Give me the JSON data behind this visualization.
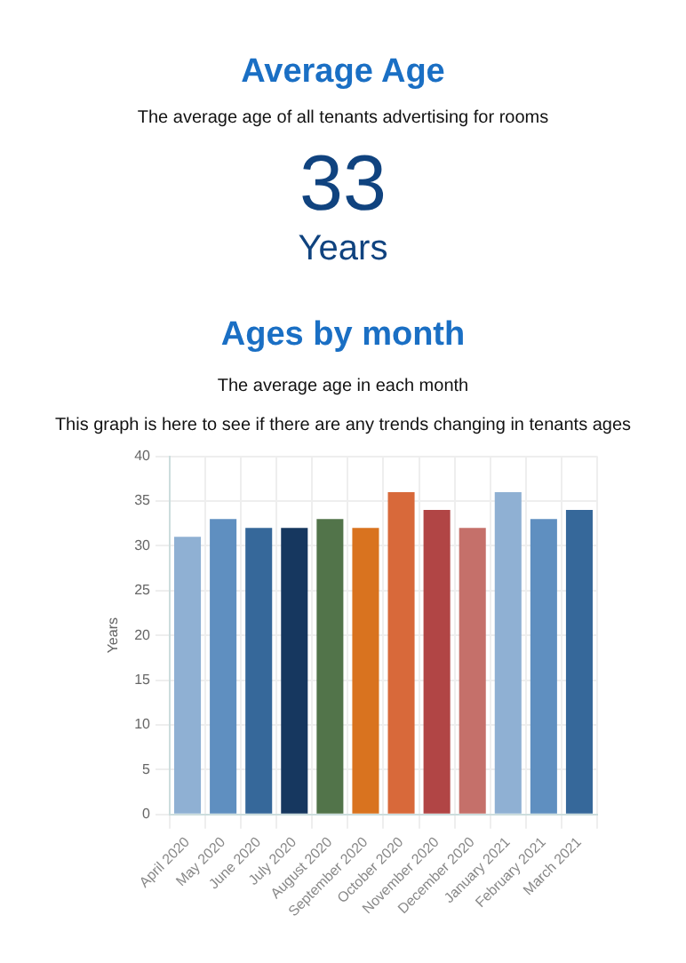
{
  "chart_data": [
    {
      "type": "other",
      "title": "Average Age",
      "subtitle": "The average age of all tenants advertising for rooms",
      "annotations": [
        "33",
        "Years"
      ]
    },
    {
      "type": "bar",
      "title": "Ages by month",
      "subtitle": "The average age in each month",
      "annotations": [
        "This graph is here to see if there are any trends changing in tenants ages"
      ],
      "ylabel": "Years",
      "categories": [
        "April 2020",
        "May 2020",
        "June 2020",
        "July 2020",
        "August 2020",
        "September 2020",
        "October 2020",
        "November 2020",
        "December 2020",
        "January 2021",
        "February 2021",
        "March 2021"
      ],
      "values": [
        31,
        33,
        32,
        32,
        33,
        32,
        36,
        34,
        32,
        36,
        33,
        34
      ],
      "colors": [
        "#8fb0d3",
        "#5f8fc0",
        "#36689a",
        "#16375f",
        "#52744a",
        "#d9731f",
        "#d8693a",
        "#b14545",
        "#c5706a",
        "#8fb0d3",
        "#5f8fc0",
        "#36689a"
      ],
      "ylim": [
        0,
        40
      ],
      "yticks": [
        0,
        5,
        10,
        15,
        20,
        25,
        30,
        35,
        40
      ],
      "grid": true,
      "legend": false
    }
  ]
}
